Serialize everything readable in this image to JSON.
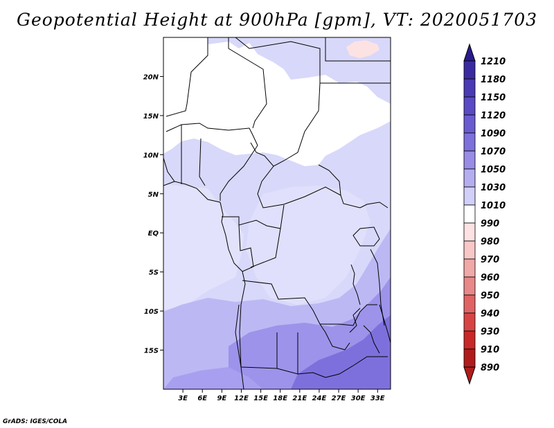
{
  "title": "Geopotential Height at 900hPa [gpm], VT: 2020051703",
  "credit": "GrADS: IGES/COLA",
  "chart_data": {
    "type": "heatmap",
    "variable": "Geopotential Height",
    "level": "900hPa",
    "units": "gpm",
    "valid_time": "2020051703",
    "lon_range": [
      0,
      35
    ],
    "lat_range": [
      -20,
      25
    ],
    "x_ticks": [
      "3E",
      "6E",
      "9E",
      "12E",
      "15E",
      "18E",
      "21E",
      "24E",
      "27E",
      "30E",
      "33E"
    ],
    "x_tick_values": [
      3,
      6,
      9,
      12,
      15,
      18,
      21,
      24,
      27,
      30,
      33
    ],
    "y_ticks": [
      "20N",
      "15N",
      "10N",
      "5N",
      "EQ",
      "5S",
      "10S",
      "15S"
    ],
    "y_tick_values": [
      20,
      15,
      10,
      5,
      0,
      -5,
      -10,
      -15
    ],
    "colorbar": {
      "levels": [
        "1210",
        "1180",
        "1150",
        "1120",
        "1090",
        "1070",
        "1050",
        "1030",
        "1010",
        "990",
        "980",
        "970",
        "960",
        "950",
        "940",
        "930",
        "910",
        "890"
      ],
      "top_cap_color": "#2a1a8c",
      "bottom_cap_color": "#b01c1c",
      "colors": [
        "#2a1a8c",
        "#3a2aa0",
        "#4a3ab4",
        "#5a4ac4",
        "#6a5cd0",
        "#7e70dc",
        "#988ce6",
        "#b4aef0",
        "#d2d0f8",
        "#ffffff",
        "#fce2e2",
        "#f8c8c8",
        "#f0a8a8",
        "#e88888",
        "#e06464",
        "#d84444",
        "#c82828",
        "#b01c1c"
      ]
    },
    "approx_field_description_levels": [
      {
        "range": "990-1010",
        "color": "#ffffff"
      },
      {
        "range": "1010-1030",
        "color": "#d8d8fa"
      },
      {
        "range": "1030-1050",
        "color": "#bcb8f4"
      },
      {
        "range": "1050-1070",
        "color": "#9d93ea"
      },
      {
        "range": "1070-1090",
        "color": "#7e70dc"
      }
    ]
  }
}
